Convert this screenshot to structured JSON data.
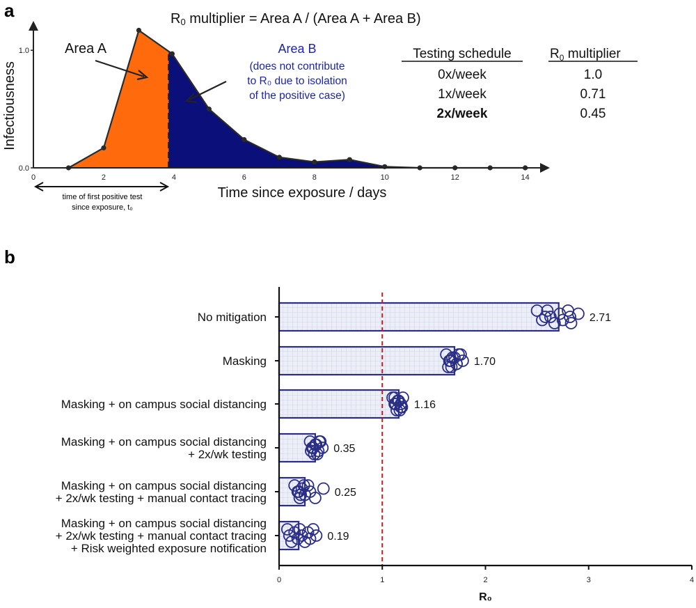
{
  "panel_a": {
    "label": "a",
    "formula_pre": "R",
    "formula_sub": "0",
    "formula_post": " multiplier = Area A / (Area A + Area B)",
    "area_a_label": "Area A",
    "area_b_label": "Area B",
    "area_b_note": [
      "(does not contribute",
      "to R₀ due to isolation",
      "of the positive case)"
    ],
    "tp_note": [
      "time of first positive test",
      "since exposure, t₀"
    ],
    "table": {
      "col1_header": "Testing schedule",
      "col2_header_pre": "R",
      "col2_header_sub": "0",
      "col2_header_post": " multiplier",
      "rows": [
        {
          "schedule": "0x/week",
          "multiplier": "1.0",
          "bold": false
        },
        {
          "schedule": "1x/week",
          "multiplier": "0.71",
          "bold": false
        },
        {
          "schedule": "2x/week",
          "multiplier": "0.45",
          "bold": true
        }
      ]
    },
    "colors": {
      "area_a": "#ff6a0d",
      "area_b": "#0a0f7a",
      "area_a_text": "#ff6a0d",
      "area_b_text": "#1c25a6"
    }
  },
  "panel_b": {
    "label": "b",
    "colors": {
      "bar_fill": "#e9ebf7",
      "bar_edge": "#2a2e86",
      "point": "#2a2e86",
      "ref_line": "#b22222"
    }
  },
  "chart_data": [
    {
      "type": "area",
      "xlabel": "Time since exposure / days",
      "ylabel": "Infectiousness",
      "xlim": [
        0,
        14.7
      ],
      "ylim": [
        0,
        1.25
      ],
      "xticks": [
        0,
        2,
        4,
        6,
        8,
        10,
        12,
        14
      ],
      "yticks": [
        0.0,
        1.0
      ],
      "ytick_labels": [
        "0.0",
        "1.0"
      ],
      "tp_days": 3.85,
      "x": [
        1,
        2,
        3,
        3.95,
        5,
        6,
        7,
        8,
        9,
        10,
        11,
        12,
        13,
        14
      ],
      "y": [
        0.0,
        0.17,
        1.17,
        0.97,
        0.5,
        0.24,
        0.09,
        0.05,
        0.07,
        0.01,
        0.0,
        0.0,
        0.0,
        0.0
      ]
    },
    {
      "type": "bar",
      "orientation": "horizontal",
      "xlabel": "R₀",
      "xlim": [
        0,
        4
      ],
      "xticks": [
        0,
        1,
        2,
        3,
        4
      ],
      "reference_line_x": 1,
      "categories": [
        [
          "No mitigation"
        ],
        [
          "Masking"
        ],
        [
          "Masking + on campus social distancing"
        ],
        [
          "Masking + on campus social distancing",
          "+ 2x/wk testing"
        ],
        [
          "Masking + on campus social distancing",
          "+ 2x/wk testing + manual contact tracing"
        ],
        [
          "Masking + on campus social distancing",
          "+ 2x/wk testing + manual contact tracing",
          "+ Risk weighted exposure notification"
        ]
      ],
      "values": [
        2.71,
        1.7,
        1.16,
        0.35,
        0.25,
        0.19
      ],
      "value_labels": [
        "2.71",
        "1.70",
        "1.16",
        "0.35",
        "0.25",
        "0.19"
      ],
      "points": [
        [
          2.6,
          2.63,
          2.67,
          2.72,
          2.75,
          2.8,
          2.82,
          2.83,
          2.9,
          2.55,
          2.5,
          2.58
        ],
        [
          1.62,
          1.65,
          1.67,
          1.7,
          1.72,
          1.74,
          1.78,
          1.64,
          1.68,
          1.72,
          1.76,
          1.66
        ],
        [
          1.1,
          1.12,
          1.14,
          1.16,
          1.18,
          1.2,
          1.13,
          1.17,
          1.15,
          1.19,
          1.12,
          1.18
        ],
        [
          0.3,
          0.32,
          0.34,
          0.36,
          0.38,
          0.4,
          0.33,
          0.37,
          0.35,
          0.31,
          0.39,
          0.42
        ],
        [
          0.15,
          0.18,
          0.2,
          0.22,
          0.25,
          0.28,
          0.3,
          0.35,
          0.43,
          0.21,
          0.24,
          0.19
        ],
        [
          0.08,
          0.1,
          0.12,
          0.15,
          0.18,
          0.2,
          0.22,
          0.25,
          0.28,
          0.3,
          0.33,
          0.36
        ]
      ]
    }
  ]
}
